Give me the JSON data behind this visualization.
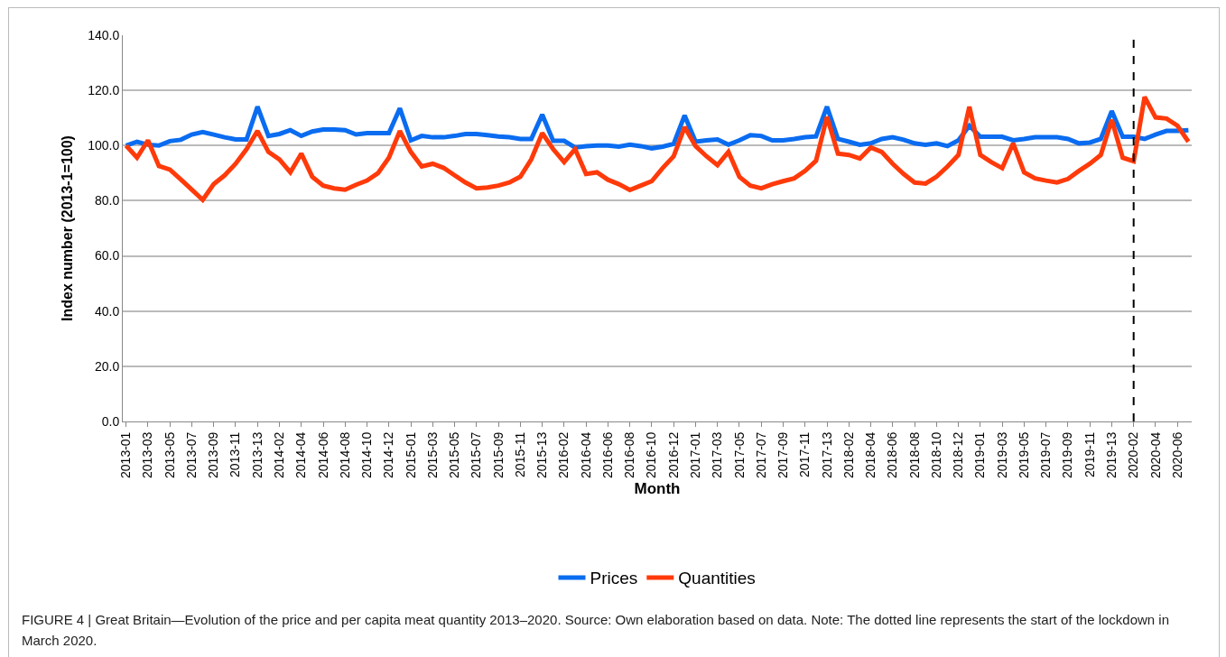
{
  "chart_data": {
    "type": "line",
    "xlabel": "Month",
    "ylabel": "Index number (2013-1=100)",
    "categories": [
      "2013-01",
      null,
      "2013-03",
      null,
      "2013-05",
      null,
      "2013-07",
      null,
      "2013-09",
      null,
      "2013-11",
      null,
      "2013-13",
      null,
      "2014-02",
      null,
      "2014-04",
      null,
      "2014-06",
      null,
      "2014-08",
      null,
      "2014-10",
      null,
      "2014-12",
      null,
      "2015-01",
      null,
      "2015-03",
      null,
      "2015-05",
      null,
      "2015-07",
      null,
      "2015-09",
      null,
      "2015-11",
      null,
      "2015-13",
      null,
      "2016-02",
      null,
      "2016-04",
      null,
      "2016-06",
      null,
      "2016-08",
      null,
      "2016-10",
      null,
      "2016-12",
      null,
      "2017-01",
      null,
      "2017-03",
      null,
      "2017-05",
      null,
      "2017-07",
      null,
      "2017-09",
      null,
      "2017-11",
      null,
      "2017-13",
      null,
      "2018-02",
      null,
      "2018-04",
      null,
      "2018-06",
      null,
      "2018-08",
      null,
      "2018-10",
      null,
      "2018-12",
      null,
      "2019-01",
      null,
      "2019-03",
      null,
      "2019-05",
      null,
      "2019-07",
      null,
      "2019-09",
      null,
      "2019-11",
      null,
      "2019-13",
      null,
      "2020-02",
      null,
      "2020-04",
      null,
      "2020-06",
      null
    ],
    "series": [
      {
        "name": "Prices",
        "color": "#0a6cf0",
        "values": [
          100,
          101.4,
          100.3,
          100,
          101.6,
          102.1,
          104,
          104.9,
          104,
          103,
          102.2,
          102.2,
          114.1,
          103.5,
          104.2,
          105.6,
          103.5,
          105.1,
          105.8,
          105.8,
          105.6,
          104,
          104.5,
          104.5,
          104.5,
          113.5,
          101.9,
          103.5,
          103,
          103,
          103.5,
          104.2,
          104.2,
          103.8,
          103.3,
          103,
          102.4,
          102.4,
          111.2,
          101.7,
          101.7,
          99.3,
          99.8,
          100,
          100,
          99.6,
          100.3,
          99.8,
          99,
          99.6,
          100.6,
          110.9,
          101.4,
          101.9,
          102.2,
          100.3,
          101.9,
          103.8,
          103.5,
          101.9,
          101.9,
          102.4,
          103,
          103.3,
          114.1,
          102.4,
          101.4,
          100.3,
          100.8,
          102.4,
          103,
          102.1,
          100.8,
          100.3,
          100.8,
          99.8,
          101.9,
          107.2,
          103.2,
          103.2,
          103.2,
          101.9,
          102.4,
          103,
          103,
          103,
          102.4,
          100.8,
          101.1,
          102.4,
          112.5,
          103.2,
          103.2,
          102.4,
          104,
          105.3,
          105.3,
          105.6
        ]
      },
      {
        "name": "Quantities",
        "color": "#ff3a0a",
        "values": [
          100,
          95.6,
          101.9,
          92.6,
          91.3,
          87.7,
          84,
          80.3,
          86,
          89.2,
          93.4,
          98.7,
          105.3,
          97.7,
          95,
          90.3,
          97.1,
          88.7,
          85.5,
          84.5,
          84,
          85.8,
          87.3,
          90,
          95.6,
          105.3,
          97.7,
          92.4,
          93.4,
          91.9,
          89.2,
          86.6,
          84.5,
          84.8,
          85.5,
          86.6,
          88.7,
          95,
          104.5,
          98.7,
          94,
          98.7,
          89.7,
          90.3,
          87.6,
          86,
          83.9,
          85.5,
          87.1,
          91.9,
          96.1,
          106.7,
          99.8,
          96.1,
          92.9,
          97.7,
          88.7,
          85.5,
          84.5,
          86,
          87.1,
          88.1,
          90.8,
          94.5,
          110.4,
          97.1,
          96.6,
          95.3,
          99.3,
          97.7,
          93.4,
          89.7,
          86.6,
          86.2,
          88.7,
          92.4,
          96.6,
          114.1,
          96.6,
          94,
          91.8,
          100.8,
          90.3,
          88.1,
          87.3,
          86.6,
          87.9,
          90.8,
          93.4,
          96.6,
          109.3,
          95.6,
          94.3,
          117.6,
          110.2,
          109.8,
          107.2,
          101.4
        ]
      }
    ],
    "ylim": [
      0,
      140
    ],
    "yticks": [
      {
        "value": 0,
        "label": "0.0"
      },
      {
        "value": 20,
        "label": "20.0"
      },
      {
        "value": 40,
        "label": "40.0"
      },
      {
        "value": 60,
        "label": "60.0"
      },
      {
        "value": 80,
        "label": "80.0"
      },
      {
        "value": 100,
        "label": "100.0"
      },
      {
        "value": 120,
        "label": "120.0"
      },
      {
        "value": 140,
        "label": "140.0"
      }
    ],
    "grid": "y",
    "legend": "bottom",
    "marker": "none",
    "line_style": "solid",
    "ref_lines": [
      {
        "axis": "x",
        "value": "2020-02",
        "color": "#000000",
        "line_style": "dashed"
      }
    ],
    "annotations": [
      "FIGURE 4 | Great Britain—Evolution of the price and per capita meat quantity 2013–2020. Source: Own elaboration based on data. Note: The dotted line represents the start of the lockdown in March 2020."
    ]
  }
}
